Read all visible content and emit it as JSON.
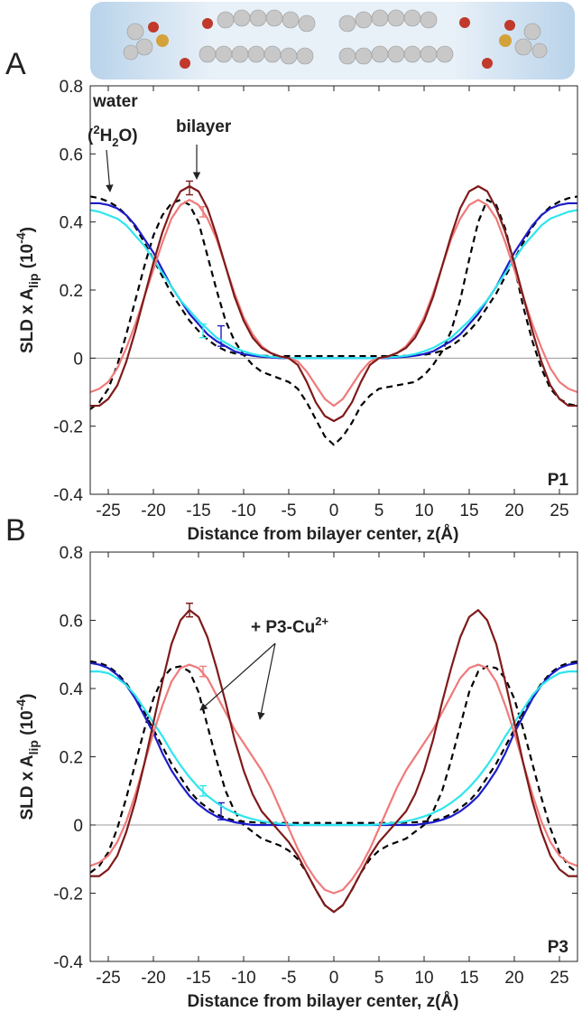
{
  "chart_data": [
    {
      "type": "line",
      "panel": "A",
      "label": "P1",
      "xlabel": "Distance from bilayer center, z(Å)",
      "ylabel": [
        "SLD x A",
        "lip",
        " (10",
        "-4",
        ")"
      ],
      "annotations": [
        [
          "water"
        ],
        [
          "(",
          "2",
          "H",
          "2",
          "O)"
        ],
        [
          "bilayer"
        ]
      ],
      "xlim": [
        -27,
        27
      ],
      "xticks": [
        -25,
        -20,
        -15,
        -10,
        -5,
        0,
        5,
        10,
        15,
        20,
        25
      ],
      "ylim": [
        -0.4,
        0.8
      ],
      "yticks": [
        -0.4,
        -0.2,
        0,
        0.2,
        0.4,
        0.6,
        0.8
      ],
      "x": [
        -27,
        -26,
        -25,
        -24,
        -23,
        -22,
        -21,
        -20,
        -19,
        -18,
        -17,
        -16,
        -15,
        -14,
        -13,
        -12,
        -11,
        -10,
        -9,
        -8,
        -7,
        -6,
        -5,
        -4,
        -3,
        -2,
        -1,
        0,
        1,
        2,
        3,
        4,
        5,
        6,
        7,
        8,
        9,
        10,
        11,
        12,
        13,
        14,
        15,
        16,
        17,
        18,
        19,
        20,
        21,
        22,
        23,
        24,
        25,
        26,
        27
      ],
      "series": [
        {
          "color": "#000000",
          "dashed": true,
          "values": [
            0.475,
            0.47,
            0.46,
            0.445,
            0.42,
            0.385,
            0.34,
            0.29,
            0.24,
            0.19,
            0.15,
            0.11,
            0.08,
            0.055,
            0.035,
            0.022,
            0.014,
            0.01,
            0.008,
            0.007,
            0.006,
            0.006,
            0.006,
            0.006,
            0.006,
            0.006,
            0.006,
            0.006,
            0.006,
            0.006,
            0.006,
            0.006,
            0.006,
            0.006,
            0.006,
            0.007,
            0.008,
            0.01,
            0.014,
            0.022,
            0.035,
            0.055,
            0.08,
            0.11,
            0.15,
            0.19,
            0.24,
            0.29,
            0.34,
            0.385,
            0.42,
            0.445,
            0.46,
            0.47,
            0.475
          ]
        },
        {
          "color": "#000000",
          "dashed": true,
          "values": [
            -0.15,
            -0.13,
            -0.09,
            -0.02,
            0.07,
            0.17,
            0.27,
            0.36,
            0.42,
            0.455,
            0.465,
            0.45,
            0.4,
            0.3,
            0.2,
            0.11,
            0.05,
            0.01,
            -0.02,
            -0.04,
            -0.05,
            -0.06,
            -0.07,
            -0.09,
            -0.13,
            -0.18,
            -0.23,
            -0.255,
            -0.23,
            -0.19,
            -0.14,
            -0.11,
            -0.09,
            -0.085,
            -0.08,
            -0.075,
            -0.07,
            -0.05,
            -0.02,
            0.02,
            0.08,
            0.17,
            0.29,
            0.4,
            0.465,
            0.45,
            0.38,
            0.27,
            0.15,
            0.05,
            -0.03,
            -0.09,
            -0.12,
            -0.135,
            -0.14
          ]
        },
        {
          "color": "#1c1cc8",
          "values": [
            0.455,
            0.455,
            0.45,
            0.44,
            0.42,
            0.39,
            0.35,
            0.31,
            0.26,
            0.21,
            0.17,
            0.13,
            0.1,
            0.07,
            0.05,
            0.035,
            0.02,
            0.012,
            0.007,
            0.004,
            0.002,
            0,
            0,
            0,
            0,
            0,
            0,
            0,
            0,
            0,
            0,
            0,
            0,
            0,
            0.002,
            0.004,
            0.007,
            0.012,
            0.02,
            0.035,
            0.05,
            0.07,
            0.1,
            0.13,
            0.17,
            0.21,
            0.26,
            0.31,
            0.35,
            0.39,
            0.42,
            0.44,
            0.45,
            0.455,
            0.455
          ],
          "error_bar": {
            "x": -12.5,
            "value": 0.065,
            "error": 0.03
          }
        },
        {
          "color": "#2ee6ee",
          "values": [
            0.435,
            0.43,
            0.42,
            0.41,
            0.39,
            0.36,
            0.33,
            0.29,
            0.25,
            0.21,
            0.17,
            0.14,
            0.11,
            0.085,
            0.06,
            0.045,
            0.03,
            0.02,
            0.012,
            0.007,
            0.004,
            0.002,
            0,
            0,
            0,
            0,
            0,
            0,
            0,
            0,
            0,
            0,
            0,
            0.002,
            0.004,
            0.007,
            0.012,
            0.02,
            0.03,
            0.045,
            0.06,
            0.085,
            0.11,
            0.14,
            0.17,
            0.21,
            0.25,
            0.29,
            0.33,
            0.36,
            0.39,
            0.41,
            0.42,
            0.43,
            0.435
          ],
          "error_bar": {
            "x": -14.5,
            "value": 0.08,
            "error": 0.02
          }
        },
        {
          "color": "#f07a7a",
          "values": [
            -0.1,
            -0.09,
            -0.07,
            -0.03,
            0.03,
            0.1,
            0.18,
            0.26,
            0.34,
            0.41,
            0.45,
            0.465,
            0.45,
            0.41,
            0.35,
            0.27,
            0.19,
            0.12,
            0.07,
            0.035,
            0.015,
            0.005,
            0,
            -0.01,
            -0.04,
            -0.08,
            -0.12,
            -0.14,
            -0.12,
            -0.08,
            -0.04,
            -0.01,
            0,
            0.005,
            0.015,
            0.035,
            0.07,
            0.12,
            0.19,
            0.27,
            0.35,
            0.41,
            0.45,
            0.465,
            0.45,
            0.41,
            0.34,
            0.26,
            0.18,
            0.1,
            0.03,
            -0.03,
            -0.07,
            -0.09,
            -0.1
          ],
          "error_bar": {
            "x": -14.5,
            "value": 0.43,
            "error": 0.015
          }
        },
        {
          "color": "#7f1a1a",
          "values": [
            -0.14,
            -0.14,
            -0.12,
            -0.08,
            -0.01,
            0.08,
            0.18,
            0.28,
            0.37,
            0.44,
            0.49,
            0.505,
            0.49,
            0.44,
            0.36,
            0.27,
            0.18,
            0.11,
            0.06,
            0.03,
            0.015,
            0.005,
            0,
            -0.02,
            -0.07,
            -0.13,
            -0.17,
            -0.185,
            -0.17,
            -0.13,
            -0.07,
            -0.02,
            0,
            0.005,
            0.015,
            0.03,
            0.06,
            0.11,
            0.18,
            0.27,
            0.36,
            0.44,
            0.49,
            0.505,
            0.49,
            0.44,
            0.37,
            0.28,
            0.18,
            0.08,
            -0.01,
            -0.08,
            -0.12,
            -0.14,
            -0.14
          ],
          "error_bar": {
            "x": -16,
            "value": 0.5,
            "error": 0.02
          }
        }
      ]
    },
    {
      "type": "line",
      "panel": "B",
      "label": "P3",
      "xlabel": "Distance from bilayer center, z(Å)",
      "ylabel": [
        "SLD x A",
        "lip",
        " (10",
        "-4",
        ")"
      ],
      "annotations": [
        [
          "+ P3-Cu",
          "2+"
        ]
      ],
      "xlim": [
        -27,
        27
      ],
      "xticks": [
        -25,
        -20,
        -15,
        -10,
        -5,
        0,
        5,
        10,
        15,
        20,
        25
      ],
      "ylim": [
        -0.4,
        0.8
      ],
      "yticks": [
        -0.4,
        -0.2,
        0,
        0.2,
        0.4,
        0.6,
        0.8
      ],
      "x": [
        -27,
        -26,
        -25,
        -24,
        -23,
        -22,
        -21,
        -20,
        -19,
        -18,
        -17,
        -16,
        -15,
        -14,
        -13,
        -12,
        -11,
        -10,
        -9,
        -8,
        -7,
        -6,
        -5,
        -4,
        -3,
        -2,
        -1,
        0,
        1,
        2,
        3,
        4,
        5,
        6,
        7,
        8,
        9,
        10,
        11,
        12,
        13,
        14,
        15,
        16,
        17,
        18,
        19,
        20,
        21,
        22,
        23,
        24,
        25,
        26,
        27
      ],
      "series": [
        {
          "color": "#000000",
          "dashed": true,
          "values": [
            0.48,
            0.475,
            0.465,
            0.445,
            0.415,
            0.375,
            0.33,
            0.28,
            0.23,
            0.18,
            0.14,
            0.1,
            0.07,
            0.05,
            0.032,
            0.02,
            0.013,
            0.01,
            0.008,
            0.007,
            0.006,
            0.006,
            0.006,
            0.006,
            0.006,
            0.006,
            0.006,
            0.006,
            0.006,
            0.006,
            0.006,
            0.006,
            0.006,
            0.006,
            0.006,
            0.007,
            0.008,
            0.01,
            0.013,
            0.02,
            0.032,
            0.05,
            0.07,
            0.1,
            0.14,
            0.18,
            0.23,
            0.28,
            0.33,
            0.375,
            0.415,
            0.445,
            0.465,
            0.475,
            0.48
          ]
        },
        {
          "color": "#000000",
          "dashed": true,
          "values": [
            -0.14,
            -0.12,
            -0.08,
            -0.01,
            0.08,
            0.18,
            0.28,
            0.37,
            0.43,
            0.46,
            0.465,
            0.45,
            0.39,
            0.29,
            0.19,
            0.1,
            0.04,
            0,
            -0.02,
            -0.04,
            -0.05,
            -0.06,
            -0.075,
            -0.1,
            -0.14,
            -0.19,
            -0.235,
            -0.255,
            -0.235,
            -0.19,
            -0.14,
            -0.1,
            -0.075,
            -0.06,
            -0.05,
            -0.04,
            -0.02,
            0,
            0.04,
            0.1,
            0.19,
            0.29,
            0.39,
            0.45,
            0.465,
            0.46,
            0.43,
            0.37,
            0.28,
            0.18,
            0.08,
            -0.01,
            -0.08,
            -0.12,
            -0.14
          ]
        },
        {
          "color": "#1c1cc8",
          "values": [
            0.475,
            0.47,
            0.46,
            0.44,
            0.41,
            0.37,
            0.32,
            0.27,
            0.21,
            0.16,
            0.12,
            0.085,
            0.06,
            0.04,
            0.025,
            0.015,
            0.008,
            0.004,
            0,
            0,
            0,
            0,
            0,
            0,
            0,
            0,
            0,
            0,
            0,
            0,
            0,
            0,
            0,
            0,
            0,
            0,
            0,
            0.004,
            0.008,
            0.015,
            0.025,
            0.04,
            0.06,
            0.085,
            0.12,
            0.16,
            0.21,
            0.27,
            0.32,
            0.37,
            0.41,
            0.44,
            0.46,
            0.47,
            0.475
          ],
          "error_bar": {
            "x": -12.5,
            "value": 0.04,
            "error": 0.025
          }
        },
        {
          "color": "#2ee6ee",
          "values": [
            0.45,
            0.45,
            0.445,
            0.43,
            0.41,
            0.38,
            0.34,
            0.3,
            0.26,
            0.215,
            0.175,
            0.14,
            0.11,
            0.085,
            0.065,
            0.048,
            0.035,
            0.025,
            0.017,
            0.011,
            0.007,
            0.004,
            0.002,
            0,
            0,
            0,
            0,
            0,
            0,
            0,
            0,
            0,
            0.002,
            0.004,
            0.007,
            0.011,
            0.017,
            0.025,
            0.035,
            0.048,
            0.065,
            0.085,
            0.11,
            0.14,
            0.175,
            0.215,
            0.26,
            0.3,
            0.34,
            0.38,
            0.41,
            0.43,
            0.445,
            0.45,
            0.45
          ],
          "error_bar": {
            "x": -14.5,
            "value": 0.1,
            "error": 0.015
          }
        },
        {
          "color": "#f07a7a",
          "values": [
            -0.12,
            -0.11,
            -0.09,
            -0.05,
            0.01,
            0.09,
            0.18,
            0.27,
            0.35,
            0.42,
            0.46,
            0.47,
            0.46,
            0.43,
            0.38,
            0.33,
            0.28,
            0.24,
            0.2,
            0.16,
            0.11,
            0.05,
            -0.01,
            -0.07,
            -0.12,
            -0.16,
            -0.19,
            -0.2,
            -0.19,
            -0.16,
            -0.12,
            -0.07,
            -0.01,
            0.05,
            0.11,
            0.16,
            0.2,
            0.24,
            0.28,
            0.33,
            0.38,
            0.43,
            0.46,
            0.47,
            0.46,
            0.42,
            0.35,
            0.27,
            0.18,
            0.09,
            0.01,
            -0.05,
            -0.09,
            -0.11,
            -0.12
          ],
          "error_bar": {
            "x": -14.5,
            "value": 0.45,
            "error": 0.015
          }
        },
        {
          "color": "#7f1a1a",
          "values": [
            -0.15,
            -0.15,
            -0.13,
            -0.09,
            -0.02,
            0.07,
            0.18,
            0.3,
            0.42,
            0.53,
            0.6,
            0.63,
            0.61,
            0.55,
            0.46,
            0.36,
            0.25,
            0.16,
            0.09,
            0.04,
            0.01,
            -0.02,
            -0.05,
            -0.09,
            -0.14,
            -0.19,
            -0.235,
            -0.255,
            -0.235,
            -0.19,
            -0.14,
            -0.09,
            -0.05,
            -0.02,
            0.01,
            0.04,
            0.09,
            0.16,
            0.25,
            0.36,
            0.46,
            0.55,
            0.61,
            0.63,
            0.6,
            0.53,
            0.42,
            0.3,
            0.18,
            0.07,
            -0.02,
            -0.09,
            -0.13,
            -0.15,
            -0.15
          ],
          "error_bar": {
            "x": -16,
            "value": 0.63,
            "error": 0.02
          }
        }
      ]
    }
  ]
}
